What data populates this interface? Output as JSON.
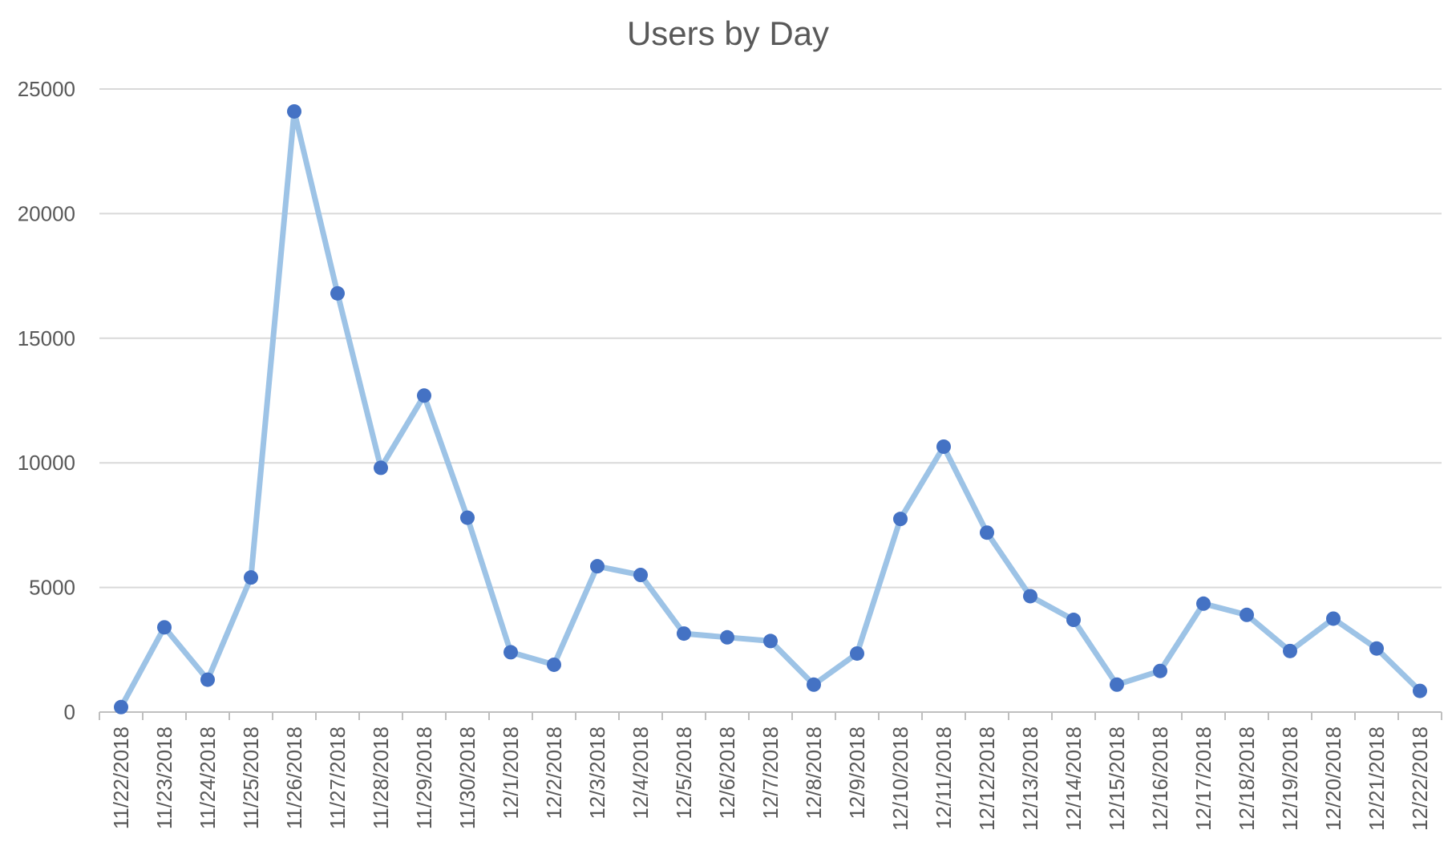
{
  "chart_data": {
    "type": "line",
    "title": "Users by Day",
    "xlabel": "",
    "ylabel": "",
    "ylim": [
      0,
      25000
    ],
    "yticks": [
      0,
      5000,
      10000,
      15000,
      20000,
      25000
    ],
    "grid": true,
    "legend": "none",
    "colors": {
      "line": "#9dc3e6",
      "marker": "#4472c4"
    },
    "categories": [
      "11/22/2018",
      "11/23/2018",
      "11/24/2018",
      "11/25/2018",
      "11/26/2018",
      "11/27/2018",
      "11/28/2018",
      "11/29/2018",
      "11/30/2018",
      "12/1/2018",
      "12/2/2018",
      "12/3/2018",
      "12/4/2018",
      "12/5/2018",
      "12/6/2018",
      "12/7/2018",
      "12/8/2018",
      "12/9/2018",
      "12/10/2018",
      "12/11/2018",
      "12/12/2018",
      "12/13/2018",
      "12/14/2018",
      "12/15/2018",
      "12/16/2018",
      "12/17/2018",
      "12/18/2018",
      "12/19/2018",
      "12/20/2018",
      "12/21/2018",
      "12/22/2018"
    ],
    "series": [
      {
        "values": [
          200,
          3400,
          1300,
          5400,
          24100,
          16800,
          9800,
          12700,
          7800,
          2400,
          1900,
          5850,
          5500,
          3150,
          3000,
          2850,
          1100,
          2350,
          7750,
          10650,
          7200,
          4650,
          3700,
          1100,
          1650,
          4350,
          3900,
          2450,
          3750,
          2550,
          850
        ]
      }
    ]
  }
}
